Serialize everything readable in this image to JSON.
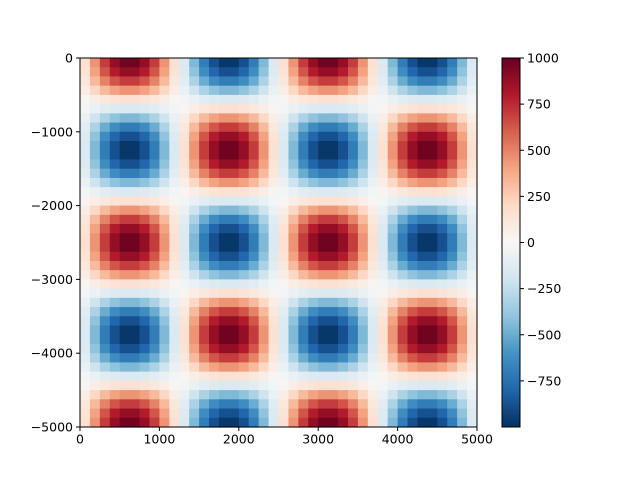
{
  "chart_data": {
    "type": "heatmap",
    "title": "",
    "xlabel": "",
    "ylabel": "",
    "colormap": "RdBu_r",
    "function": "1000 * sin(2*pi*x/2500) * cos(2*pi*y/2500)",
    "grid_size": [
      40,
      40
    ],
    "xlim": [
      0,
      5000
    ],
    "ylim": [
      -5000,
      0
    ],
    "x_ticks": [
      0,
      1000,
      2000,
      3000,
      4000,
      5000
    ],
    "x_tick_labels": [
      "0",
      "1000",
      "2000",
      "3000",
      "4000",
      "5000"
    ],
    "y_ticks": [
      0,
      -1000,
      -2000,
      -3000,
      -4000,
      -5000
    ],
    "y_tick_labels": [
      "0",
      "−1000",
      "−2000",
      "−3000",
      "−4000",
      "−5000"
    ],
    "colorbar": {
      "range": [
        -1000,
        1000
      ],
      "ticks": [
        1000,
        750,
        500,
        250,
        0,
        -250,
        -500,
        -750
      ],
      "tick_labels": [
        "1000",
        "750",
        "500",
        "250",
        "0",
        "−250",
        "−500",
        "−750"
      ]
    },
    "grid": false
  }
}
